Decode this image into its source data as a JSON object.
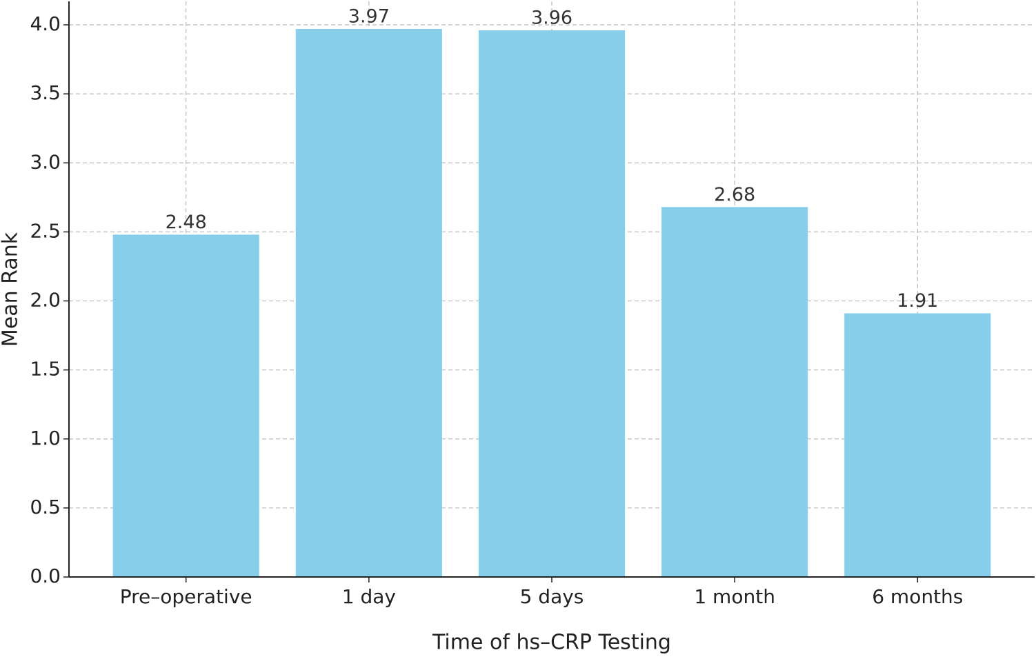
{
  "chart_data": {
    "type": "bar",
    "x_label": "Time of hs–CRP Testing",
    "y_label": "Mean Rank",
    "categories": [
      "Pre–operative",
      "1 day",
      "5 days",
      "1 month",
      "6 months"
    ],
    "values": [
      2.48,
      3.97,
      3.96,
      2.68,
      1.91
    ],
    "color": "#87ceeb",
    "ylim": [
      0,
      4.17
    ],
    "yticks": [
      {
        "value": 0,
        "label": "0.0"
      },
      0.5,
      {
        "value": 1,
        "label": "1.0"
      },
      1.5,
      {
        "value": 2,
        "label": "2.0"
      },
      2.5,
      {
        "value": 3,
        "label": "3.0"
      },
      3.5,
      {
        "value": 4,
        "label": "4.0"
      }
    ],
    "grid": true
  }
}
